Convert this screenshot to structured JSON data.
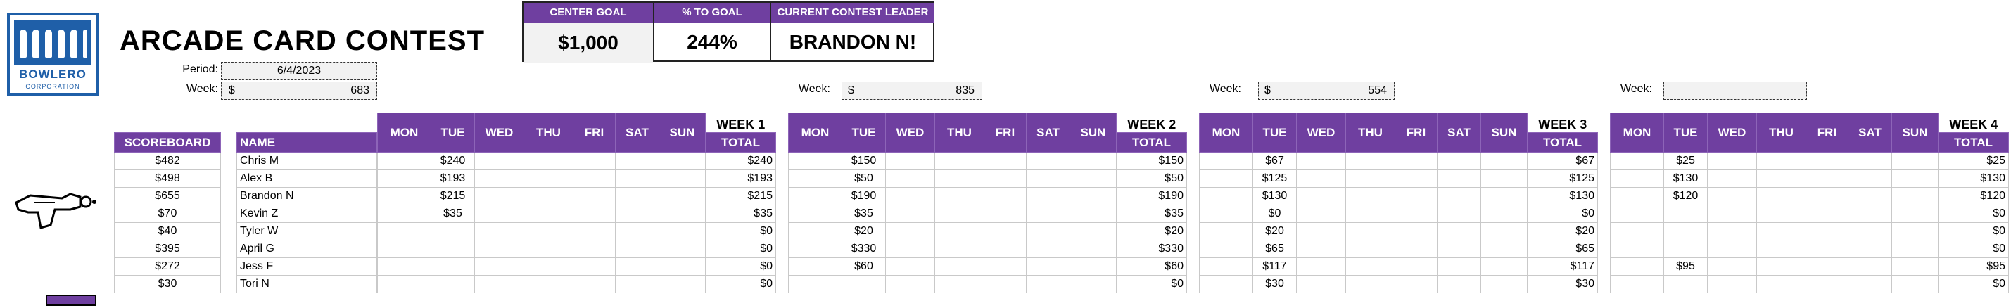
{
  "header": {
    "title": "ARCADE CARD CONTEST",
    "logo": {
      "brand": "BOWLERO",
      "corp": "CORPORATION"
    },
    "period_label": "Period:",
    "period_value": "6/4/2023",
    "week_label": "Week:",
    "week_currency": "$",
    "week_value": "683"
  },
  "goal_box": {
    "center_goal_label": "CENTER GOAL",
    "center_goal_value": "$1,000",
    "pct_label": "% TO GOAL",
    "pct_value": "244%",
    "leader_label": "CURRENT CONTEST LEADER",
    "leader_value": "BRANDON N!"
  },
  "days": [
    "MON",
    "TUE",
    "WED",
    "THU",
    "FRI",
    "SAT",
    "SUN"
  ],
  "left_table": {
    "scoreboard_header": "SCOREBOARD",
    "name_header": "NAME",
    "rows": [
      {
        "score": "$482",
        "name": "Chris M"
      },
      {
        "score": "$498",
        "name": "Alex B"
      },
      {
        "score": "$655",
        "name": "Brandon N"
      },
      {
        "score": "$70",
        "name": "Kevin Z"
      },
      {
        "score": "$40",
        "name": "Tyler W"
      },
      {
        "score": "$395",
        "name": "April G"
      },
      {
        "score": "$272",
        "name": "Jess F"
      },
      {
        "score": "$30",
        "name": "Tori N"
      }
    ]
  },
  "weeks": [
    {
      "title": "WEEK 1",
      "total_label": "TOTAL",
      "week_label": "Week:",
      "currency": "$",
      "week_value": "683",
      "rows": [
        [
          "",
          "$240",
          "",
          "",
          "",
          "",
          "",
          "$240"
        ],
        [
          "",
          "$193",
          "",
          "",
          "",
          "",
          "",
          "$193"
        ],
        [
          "",
          "$215",
          "",
          "",
          "",
          "",
          "",
          "$215"
        ],
        [
          "",
          "$35",
          "",
          "",
          "",
          "",
          "",
          "$35"
        ],
        [
          "",
          "",
          "",
          "",
          "",
          "",
          "",
          "$0"
        ],
        [
          "",
          "",
          "",
          "",
          "",
          "",
          "",
          "$0"
        ],
        [
          "",
          "",
          "",
          "",
          "",
          "",
          "",
          "$0"
        ],
        [
          "",
          "",
          "",
          "",
          "",
          "",
          "",
          "$0"
        ]
      ]
    },
    {
      "title": "WEEK 2",
      "total_label": "TOTAL",
      "week_label": "Week:",
      "currency": "$",
      "week_value": "835",
      "rows": [
        [
          "",
          "$150",
          "",
          "",
          "",
          "",
          "",
          "$150"
        ],
        [
          "",
          "$50",
          "",
          "",
          "",
          "",
          "",
          "$50"
        ],
        [
          "",
          "$190",
          "",
          "",
          "",
          "",
          "",
          "$190"
        ],
        [
          "",
          "$35",
          "",
          "",
          "",
          "",
          "",
          "$35"
        ],
        [
          "",
          "$20",
          "",
          "",
          "",
          "",
          "",
          "$20"
        ],
        [
          "",
          "$330",
          "",
          "",
          "",
          "",
          "",
          "$330"
        ],
        [
          "",
          "$60",
          "",
          "",
          "",
          "",
          "",
          "$60"
        ],
        [
          "",
          "",
          "",
          "",
          "",
          "",
          "",
          "$0"
        ]
      ]
    },
    {
      "title": "WEEK 3",
      "total_label": "TOTAL",
      "week_label": "Week:",
      "currency": "$",
      "week_value": "554",
      "rows": [
        [
          "",
          "$67",
          "",
          "",
          "",
          "",
          "",
          "$67"
        ],
        [
          "",
          "$125",
          "",
          "",
          "",
          "",
          "",
          "$125"
        ],
        [
          "",
          "$130",
          "",
          "",
          "",
          "",
          "",
          "$130"
        ],
        [
          "",
          "$0",
          "",
          "",
          "",
          "",
          "",
          "$0"
        ],
        [
          "",
          "$20",
          "",
          "",
          "",
          "",
          "",
          "$20"
        ],
        [
          "",
          "$65",
          "",
          "",
          "",
          "",
          "",
          "$65"
        ],
        [
          "",
          "$117",
          "",
          "",
          "",
          "",
          "",
          "$117"
        ],
        [
          "",
          "$30",
          "",
          "",
          "",
          "",
          "",
          "$30"
        ]
      ]
    },
    {
      "title": "WEEK 4",
      "total_label": "TOTAL",
      "week_label": "Week:",
      "currency": "",
      "week_value": "",
      "rows": [
        [
          "",
          "$25",
          "",
          "",
          "",
          "",
          "",
          "$25"
        ],
        [
          "",
          "$130",
          "",
          "",
          "",
          "",
          "",
          "$130"
        ],
        [
          "",
          "$120",
          "",
          "",
          "",
          "",
          "",
          "$120"
        ],
        [
          "",
          "",
          "",
          "",
          "",
          "",
          "",
          "$0"
        ],
        [
          "",
          "",
          "",
          "",
          "",
          "",
          "",
          "$0"
        ],
        [
          "",
          "",
          "",
          "",
          "",
          "",
          "",
          "$0"
        ],
        [
          "",
          "$95",
          "",
          "",
          "",
          "",
          "",
          "$95"
        ],
        [
          "",
          "",
          "",
          "",
          "",
          "",
          "",
          "$0"
        ]
      ]
    }
  ],
  "icons": [
    "bowlero-logo-icon",
    "ray-gun-icon",
    "arcade-tool-icon"
  ],
  "colors": {
    "header_purple": "#6f3fa0",
    "logo_blue": "#1f5fa8"
  }
}
